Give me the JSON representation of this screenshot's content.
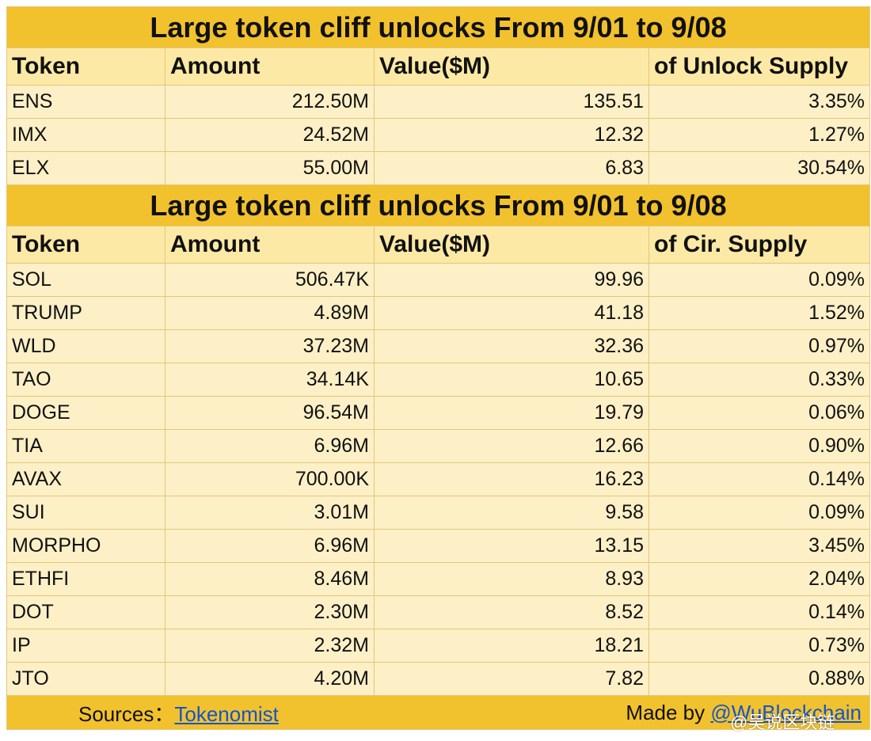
{
  "section1": {
    "title": "Large token cliff unlocks From  9/01 to 9/08",
    "headers": [
      "Token",
      "Amount",
      "Value($M)",
      "of Unlock Supply"
    ],
    "rows": [
      [
        "ENS",
        "212.50M",
        "135.51",
        "3.35%"
      ],
      [
        "IMX",
        "24.52M",
        "12.32",
        "1.27%"
      ],
      [
        "ELX",
        "55.00M",
        "6.83",
        "30.54%"
      ]
    ]
  },
  "section2": {
    "title": "Large token cliff unlocks From  9/01 to 9/08",
    "headers": [
      "Token",
      "Amount",
      "Value($M)",
      "of Cir. Supply"
    ],
    "rows": [
      [
        "SOL",
        "506.47K",
        "99.96",
        "0.09%"
      ],
      [
        "TRUMP",
        "4.89M",
        "41.18",
        "1.52%"
      ],
      [
        "WLD",
        "37.23M",
        "32.36",
        "0.97%"
      ],
      [
        "TAO",
        "34.14K",
        "10.65",
        "0.33%"
      ],
      [
        "DOGE",
        "96.54M",
        "19.79",
        "0.06%"
      ],
      [
        "TIA",
        "6.96M",
        "12.66",
        "0.90%"
      ],
      [
        "AVAX",
        "700.00K",
        "16.23",
        "0.14%"
      ],
      [
        "SUI",
        "3.01M",
        "9.58",
        "0.09%"
      ],
      [
        "MORPHO",
        "6.96M",
        "13.15",
        "3.45%"
      ],
      [
        "ETHFI",
        "8.46M",
        "8.93",
        "2.04%"
      ],
      [
        "DOT",
        "2.30M",
        "8.52",
        "0.14%"
      ],
      [
        "IP",
        "2.32M",
        "18.21",
        "0.73%"
      ],
      [
        "JTO",
        "4.20M",
        "7.82",
        "0.88%"
      ]
    ]
  },
  "footer": {
    "sources_label": "Sources：",
    "sources_link": "Tokenomist",
    "made_label": "Made by ",
    "made_link": "@WuBlockchain"
  },
  "watermark": "@吴说区块链",
  "colors": {
    "title_bg": "#f2c12e",
    "header_bg": "#fde9a6",
    "row_bg": "#fdf0c7",
    "link": "#1155cc"
  }
}
